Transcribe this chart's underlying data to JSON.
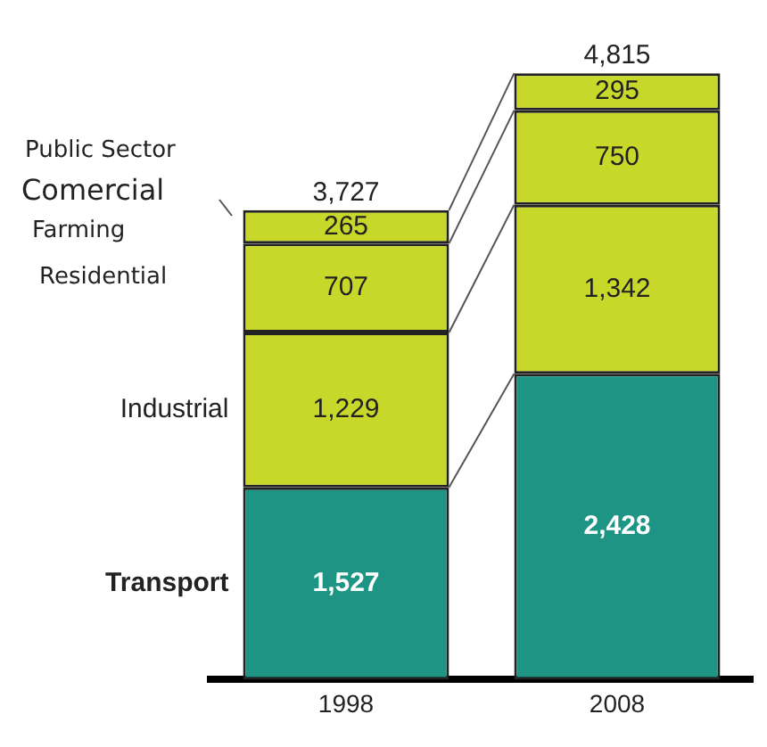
{
  "chart_data": {
    "type": "bar",
    "stacked": true,
    "categories": [
      "1998",
      "2008"
    ],
    "series": [
      {
        "name": "Transport",
        "color": "#1e9484",
        "values": [
          1527,
          2428
        ],
        "value_labels": [
          "1,527",
          "2,428"
        ]
      },
      {
        "name": "Industrial",
        "color": "#c8d82a",
        "values": [
          1229,
          1342
        ],
        "value_labels": [
          "1,229",
          "1,342"
        ]
      },
      {
        "color": "#c8d82a",
        "values": [
          707,
          750
        ],
        "value_labels": [
          "707",
          "750"
        ]
      },
      {
        "color": "#c8d82a",
        "values": [
          265,
          295
        ],
        "value_labels": [
          "265",
          "295"
        ]
      }
    ],
    "totals": [
      "3,727",
      "4,815"
    ],
    "annotations": [
      "Public Sector",
      "Comercial",
      "Farming",
      "Residential"
    ],
    "grid": false,
    "legend": false
  }
}
